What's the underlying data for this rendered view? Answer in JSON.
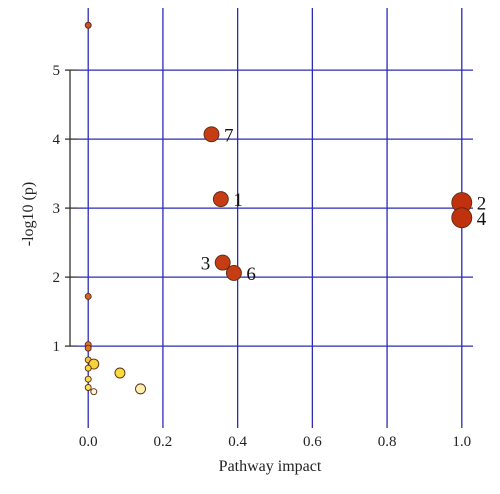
{
  "chart_data": {
    "type": "scatter",
    "title": "",
    "xlabel": "Pathway impact",
    "ylabel": "-log10 (p)",
    "xlim": [
      -0.03,
      1.03
    ],
    "ylim": [
      -0.1,
      5.9
    ],
    "x_ticks": [
      "0.0",
      "0.2",
      "0.4",
      "0.6",
      "0.8",
      "1.0"
    ],
    "y_ticks": [
      "1",
      "2",
      "3",
      "4",
      "5"
    ],
    "grid": true,
    "colors": {
      "grid": "#2b2bb8",
      "axis": "#333333",
      "point_stroke": "#5a2a10"
    },
    "points": [
      {
        "x": 0.0,
        "y": 5.65,
        "size": "tiny",
        "color": "#c9522a",
        "label": ""
      },
      {
        "x": 0.33,
        "y": 4.07,
        "size": "medium",
        "color": "#c63c14",
        "label": "7"
      },
      {
        "x": 0.355,
        "y": 3.13,
        "size": "medium",
        "color": "#c63c14",
        "label": "1"
      },
      {
        "x": 1.0,
        "y": 3.08,
        "size": "large",
        "color": "#c0320e",
        "label": "2"
      },
      {
        "x": 1.0,
        "y": 2.86,
        "size": "large",
        "color": "#c0320e",
        "label": "4"
      },
      {
        "x": 0.36,
        "y": 2.21,
        "size": "medium",
        "color": "#c63c14",
        "label": "3"
      },
      {
        "x": 0.39,
        "y": 2.06,
        "size": "medium",
        "color": "#c63c14",
        "label": "6"
      },
      {
        "x": 0.0,
        "y": 1.72,
        "size": "tiny",
        "color": "#d0652a",
        "label": ""
      },
      {
        "x": 0.0,
        "y": 1.02,
        "size": "tiny",
        "color": "#d8782c",
        "label": ""
      },
      {
        "x": 0.0,
        "y": 0.97,
        "size": "tiny",
        "color": "#d8782c",
        "label": ""
      },
      {
        "x": 0.0,
        "y": 0.8,
        "size": "tiny",
        "color": "#f0c838",
        "label": ""
      },
      {
        "x": 0.015,
        "y": 0.74,
        "size": "small",
        "color": "#f3d23c",
        "label": ""
      },
      {
        "x": 0.0,
        "y": 0.68,
        "size": "tiny",
        "color": "#f5da40",
        "label": ""
      },
      {
        "x": 0.085,
        "y": 0.61,
        "size": "small",
        "color": "#f7dc40",
        "label": ""
      },
      {
        "x": 0.0,
        "y": 0.52,
        "size": "tiny",
        "color": "#f7df48",
        "label": ""
      },
      {
        "x": 0.0,
        "y": 0.4,
        "size": "tiny",
        "color": "#f8e458",
        "label": ""
      },
      {
        "x": 0.14,
        "y": 0.38,
        "size": "small",
        "color": "#fbf0b0",
        "label": ""
      },
      {
        "x": 0.015,
        "y": 0.34,
        "size": "tiny",
        "color": "#fdf7e0",
        "label": ""
      }
    ]
  }
}
